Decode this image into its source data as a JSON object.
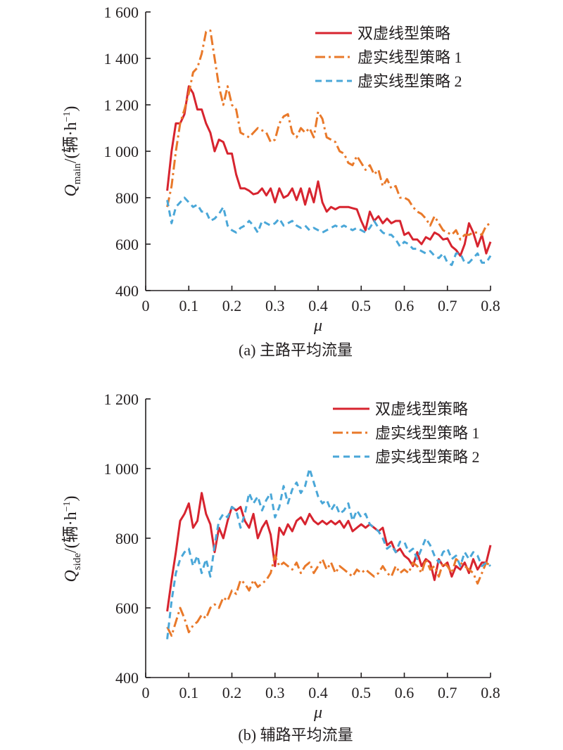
{
  "colors": {
    "dual_dashed": "#d7242f",
    "mixed_1": "#e9792a",
    "mixed_2": "#4aa7d8"
  },
  "chart_data": [
    {
      "type": "line",
      "caption": "(a) 主路平均流量",
      "xlabel": "μ",
      "ylabel_main": "Q",
      "ylabel_sub": "main",
      "ylabel_unit": "/(辆·h",
      "ylabel_sup": "−1",
      "ylabel_close": ")",
      "xlim": [
        0,
        0.8
      ],
      "ylim": [
        400,
        1600
      ],
      "xticks": [
        0,
        0.1,
        0.2,
        0.3,
        0.4,
        0.5,
        0.6,
        0.7,
        0.8
      ],
      "xtick_labels": [
        "0",
        "0.1",
        "0.2",
        "0.3",
        "0.4",
        "0.5",
        "0.6",
        "0.7",
        "0.8"
      ],
      "yticks": [
        400,
        600,
        800,
        1000,
        1200,
        1400,
        1600
      ],
      "ytick_labels": [
        "400",
        "600",
        "800",
        "1 000",
        "1 200",
        "1 400",
        "1 600"
      ],
      "legend_position": "top-right",
      "series": [
        {
          "name": "双虚线型策略",
          "color": "#d7242f",
          "style": "solid",
          "x": [
            0.05,
            0.06,
            0.07,
            0.08,
            0.09,
            0.1,
            0.11,
            0.12,
            0.13,
            0.14,
            0.15,
            0.16,
            0.17,
            0.18,
            0.19,
            0.2,
            0.21,
            0.22,
            0.23,
            0.24,
            0.25,
            0.26,
            0.27,
            0.28,
            0.29,
            0.3,
            0.31,
            0.32,
            0.33,
            0.34,
            0.35,
            0.36,
            0.37,
            0.38,
            0.39,
            0.4,
            0.41,
            0.42,
            0.43,
            0.44,
            0.45,
            0.46,
            0.47,
            0.48,
            0.49,
            0.5,
            0.51,
            0.52,
            0.53,
            0.54,
            0.55,
            0.56,
            0.57,
            0.58,
            0.59,
            0.6,
            0.61,
            0.62,
            0.63,
            0.64,
            0.65,
            0.66,
            0.67,
            0.68,
            0.69,
            0.7,
            0.71,
            0.72,
            0.73,
            0.74,
            0.75,
            0.76,
            0.77,
            0.78,
            0.79,
            0.8
          ],
          "y": [
            830,
            1000,
            1120,
            1120,
            1160,
            1280,
            1250,
            1180,
            1180,
            1120,
            1080,
            1000,
            1050,
            1040,
            990,
            990,
            900,
            840,
            840,
            830,
            815,
            820,
            840,
            810,
            840,
            780,
            840,
            800,
            810,
            840,
            790,
            840,
            770,
            840,
            780,
            870,
            780,
            740,
            760,
            750,
            760,
            760,
            760,
            755,
            750,
            700,
            660,
            740,
            700,
            720,
            690,
            710,
            690,
            700,
            700,
            640,
            650,
            620,
            620,
            600,
            630,
            620,
            650,
            640,
            620,
            625,
            590,
            575,
            550,
            600,
            690,
            650,
            590,
            640,
            560,
            610
          ]
        },
        {
          "name": "虚实线型策略 1",
          "color": "#e9792a",
          "style": "dashdot",
          "x": [
            0.05,
            0.06,
            0.07,
            0.08,
            0.09,
            0.1,
            0.11,
            0.12,
            0.13,
            0.14,
            0.15,
            0.16,
            0.17,
            0.18,
            0.19,
            0.2,
            0.21,
            0.22,
            0.23,
            0.24,
            0.25,
            0.26,
            0.27,
            0.28,
            0.29,
            0.3,
            0.31,
            0.32,
            0.33,
            0.34,
            0.35,
            0.36,
            0.37,
            0.38,
            0.39,
            0.4,
            0.41,
            0.42,
            0.43,
            0.44,
            0.45,
            0.46,
            0.47,
            0.48,
            0.49,
            0.5,
            0.51,
            0.52,
            0.53,
            0.54,
            0.55,
            0.56,
            0.57,
            0.58,
            0.59,
            0.6,
            0.61,
            0.62,
            0.63,
            0.64,
            0.65,
            0.66,
            0.67,
            0.68,
            0.69,
            0.7,
            0.71,
            0.72,
            0.73,
            0.74,
            0.75,
            0.76,
            0.77,
            0.78,
            0.79,
            0.8
          ],
          "y": [
            760,
            850,
            1000,
            1120,
            1180,
            1250,
            1340,
            1360,
            1420,
            1515,
            1520,
            1400,
            1280,
            1200,
            1280,
            1200,
            1180,
            1080,
            1070,
            1060,
            1080,
            1100,
            1090,
            1080,
            1040,
            1050,
            1120,
            1150,
            1160,
            1080,
            1060,
            1100,
            1080,
            1100,
            1060,
            1170,
            1140,
            1060,
            1050,
            1040,
            1000,
            990,
            950,
            940,
            980,
            950,
            920,
            940,
            900,
            920,
            850,
            880,
            840,
            850,
            800,
            800,
            790,
            760,
            740,
            730,
            710,
            680,
            720,
            690,
            660,
            650,
            640,
            660,
            620,
            640,
            640,
            650,
            650,
            640,
            680,
            690
          ]
        },
        {
          "name": "虚实线型策略 2",
          "color": "#4aa7d8",
          "style": "dashed",
          "x": [
            0.05,
            0.06,
            0.07,
            0.08,
            0.09,
            0.1,
            0.11,
            0.12,
            0.13,
            0.14,
            0.15,
            0.16,
            0.17,
            0.18,
            0.19,
            0.2,
            0.21,
            0.22,
            0.23,
            0.24,
            0.25,
            0.26,
            0.27,
            0.28,
            0.29,
            0.3,
            0.31,
            0.32,
            0.33,
            0.34,
            0.35,
            0.36,
            0.37,
            0.38,
            0.39,
            0.4,
            0.41,
            0.42,
            0.43,
            0.44,
            0.45,
            0.46,
            0.47,
            0.48,
            0.49,
            0.5,
            0.51,
            0.52,
            0.53,
            0.54,
            0.55,
            0.56,
            0.57,
            0.58,
            0.59,
            0.6,
            0.61,
            0.62,
            0.63,
            0.64,
            0.65,
            0.66,
            0.67,
            0.68,
            0.69,
            0.7,
            0.71,
            0.72,
            0.73,
            0.74,
            0.75,
            0.76,
            0.77,
            0.78,
            0.79,
            0.8
          ],
          "y": [
            790,
            690,
            760,
            780,
            800,
            780,
            760,
            770,
            740,
            740,
            700,
            710,
            730,
            760,
            680,
            660,
            650,
            670,
            680,
            700,
            680,
            650,
            700,
            690,
            680,
            690,
            710,
            680,
            690,
            700,
            680,
            670,
            680,
            660,
            670,
            660,
            650,
            660,
            670,
            680,
            670,
            680,
            670,
            660,
            670,
            660,
            650,
            670,
            700,
            670,
            650,
            640,
            640,
            620,
            590,
            610,
            600,
            580,
            580,
            570,
            560,
            570,
            550,
            540,
            560,
            520,
            510,
            560,
            560,
            520,
            520,
            540,
            560,
            520,
            520,
            550
          ]
        }
      ]
    },
    {
      "type": "line",
      "caption": "(b) 辅路平均流量",
      "xlabel": "μ",
      "ylabel_main": "Q",
      "ylabel_sub": "side",
      "ylabel_unit": "/(辆·h",
      "ylabel_sup": "−1",
      "ylabel_close": ")",
      "xlim": [
        0,
        0.8
      ],
      "ylim": [
        400,
        1200
      ],
      "xticks": [
        0,
        0.1,
        0.2,
        0.3,
        0.4,
        0.5,
        0.6,
        0.7,
        0.8
      ],
      "xtick_labels": [
        "0",
        "0.1",
        "0.2",
        "0.3",
        "0.4",
        "0.5",
        "0.6",
        "0.7",
        "0.8"
      ],
      "yticks": [
        400,
        600,
        800,
        1000,
        1200
      ],
      "ytick_labels": [
        "400",
        "600",
        "800",
        "1 000",
        "1 200"
      ],
      "legend_position": "top-right",
      "series": [
        {
          "name": "双虚线型策略",
          "color": "#d7242f",
          "style": "solid",
          "x": [
            0.05,
            0.06,
            0.07,
            0.08,
            0.09,
            0.1,
            0.11,
            0.12,
            0.13,
            0.14,
            0.15,
            0.16,
            0.17,
            0.18,
            0.19,
            0.2,
            0.21,
            0.22,
            0.23,
            0.24,
            0.25,
            0.26,
            0.27,
            0.28,
            0.29,
            0.3,
            0.31,
            0.32,
            0.33,
            0.34,
            0.35,
            0.36,
            0.37,
            0.38,
            0.39,
            0.4,
            0.41,
            0.42,
            0.43,
            0.44,
            0.45,
            0.46,
            0.47,
            0.48,
            0.49,
            0.5,
            0.51,
            0.52,
            0.53,
            0.54,
            0.55,
            0.56,
            0.57,
            0.58,
            0.59,
            0.6,
            0.61,
            0.62,
            0.63,
            0.64,
            0.65,
            0.66,
            0.67,
            0.68,
            0.69,
            0.7,
            0.71,
            0.72,
            0.73,
            0.74,
            0.75,
            0.76,
            0.77,
            0.78,
            0.79,
            0.8
          ],
          "y": [
            590,
            680,
            760,
            850,
            870,
            900,
            830,
            850,
            930,
            870,
            840,
            760,
            830,
            800,
            850,
            890,
            880,
            890,
            850,
            830,
            870,
            800,
            830,
            850,
            810,
            720,
            830,
            810,
            840,
            820,
            850,
            860,
            840,
            870,
            850,
            840,
            850,
            840,
            850,
            840,
            850,
            830,
            850,
            820,
            830,
            840,
            830,
            840,
            830,
            820,
            830,
            780,
            790,
            760,
            770,
            750,
            740,
            720,
            760,
            720,
            740,
            730,
            680,
            740,
            720,
            730,
            690,
            720,
            710,
            730,
            700,
            740,
            710,
            730,
            730,
            780
          ]
        },
        {
          "name": "虚实线型策略 1",
          "color": "#e9792a",
          "style": "dashdot",
          "x": [
            0.05,
            0.06,
            0.07,
            0.08,
            0.09,
            0.1,
            0.11,
            0.12,
            0.13,
            0.14,
            0.15,
            0.16,
            0.17,
            0.18,
            0.19,
            0.2,
            0.21,
            0.22,
            0.23,
            0.24,
            0.25,
            0.26,
            0.27,
            0.28,
            0.29,
            0.3,
            0.31,
            0.32,
            0.33,
            0.34,
            0.35,
            0.36,
            0.37,
            0.38,
            0.39,
            0.4,
            0.41,
            0.42,
            0.43,
            0.44,
            0.45,
            0.46,
            0.47,
            0.48,
            0.49,
            0.5,
            0.51,
            0.52,
            0.53,
            0.54,
            0.55,
            0.56,
            0.57,
            0.58,
            0.59,
            0.6,
            0.61,
            0.62,
            0.63,
            0.64,
            0.65,
            0.66,
            0.67,
            0.68,
            0.69,
            0.7,
            0.71,
            0.72,
            0.73,
            0.74,
            0.75,
            0.76,
            0.77,
            0.78,
            0.79,
            0.8
          ],
          "y": [
            545,
            520,
            560,
            600,
            570,
            530,
            550,
            560,
            580,
            570,
            600,
            610,
            600,
            630,
            620,
            650,
            640,
            680,
            670,
            650,
            680,
            660,
            670,
            680,
            700,
            750,
            720,
            730,
            720,
            710,
            730,
            700,
            720,
            730,
            700,
            720,
            740,
            710,
            730,
            700,
            720,
            710,
            700,
            690,
            710,
            700,
            710,
            700,
            690,
            700,
            720,
            700,
            690,
            720,
            700,
            710,
            700,
            730,
            720,
            700,
            740,
            710,
            720,
            690,
            730,
            720,
            700,
            740,
            730,
            720,
            710,
            700,
            670,
            700,
            730,
            720
          ]
        },
        {
          "name": "虚实线型策略 2",
          "color": "#4aa7d8",
          "style": "dashed",
          "x": [
            0.05,
            0.06,
            0.07,
            0.08,
            0.09,
            0.1,
            0.11,
            0.12,
            0.13,
            0.14,
            0.15,
            0.16,
            0.17,
            0.18,
            0.19,
            0.2,
            0.21,
            0.22,
            0.23,
            0.24,
            0.25,
            0.26,
            0.27,
            0.28,
            0.29,
            0.3,
            0.31,
            0.32,
            0.33,
            0.34,
            0.35,
            0.36,
            0.37,
            0.38,
            0.39,
            0.4,
            0.41,
            0.42,
            0.43,
            0.44,
            0.45,
            0.46,
            0.47,
            0.48,
            0.49,
            0.5,
            0.51,
            0.52,
            0.53,
            0.54,
            0.55,
            0.56,
            0.57,
            0.58,
            0.59,
            0.6,
            0.61,
            0.62,
            0.63,
            0.64,
            0.65,
            0.66,
            0.67,
            0.68,
            0.69,
            0.7,
            0.71,
            0.72,
            0.73,
            0.74,
            0.75,
            0.76,
            0.77,
            0.78,
            0.79,
            0.8
          ],
          "y": [
            510,
            620,
            700,
            740,
            760,
            770,
            720,
            750,
            700,
            740,
            690,
            780,
            850,
            870,
            860,
            890,
            880,
            830,
            870,
            930,
            900,
            920,
            880,
            910,
            930,
            860,
            890,
            950,
            900,
            940,
            960,
            930,
            950,
            1000,
            960,
            920,
            900,
            910,
            880,
            900,
            870,
            880,
            900,
            850,
            880,
            860,
            870,
            840,
            830,
            820,
            800,
            770,
            780,
            760,
            790,
            790,
            760,
            770,
            740,
            770,
            800,
            780,
            750,
            730,
            760,
            770,
            740,
            750,
            720,
            760,
            740,
            760,
            750,
            720,
            730,
            720
          ]
        }
      ]
    }
  ]
}
